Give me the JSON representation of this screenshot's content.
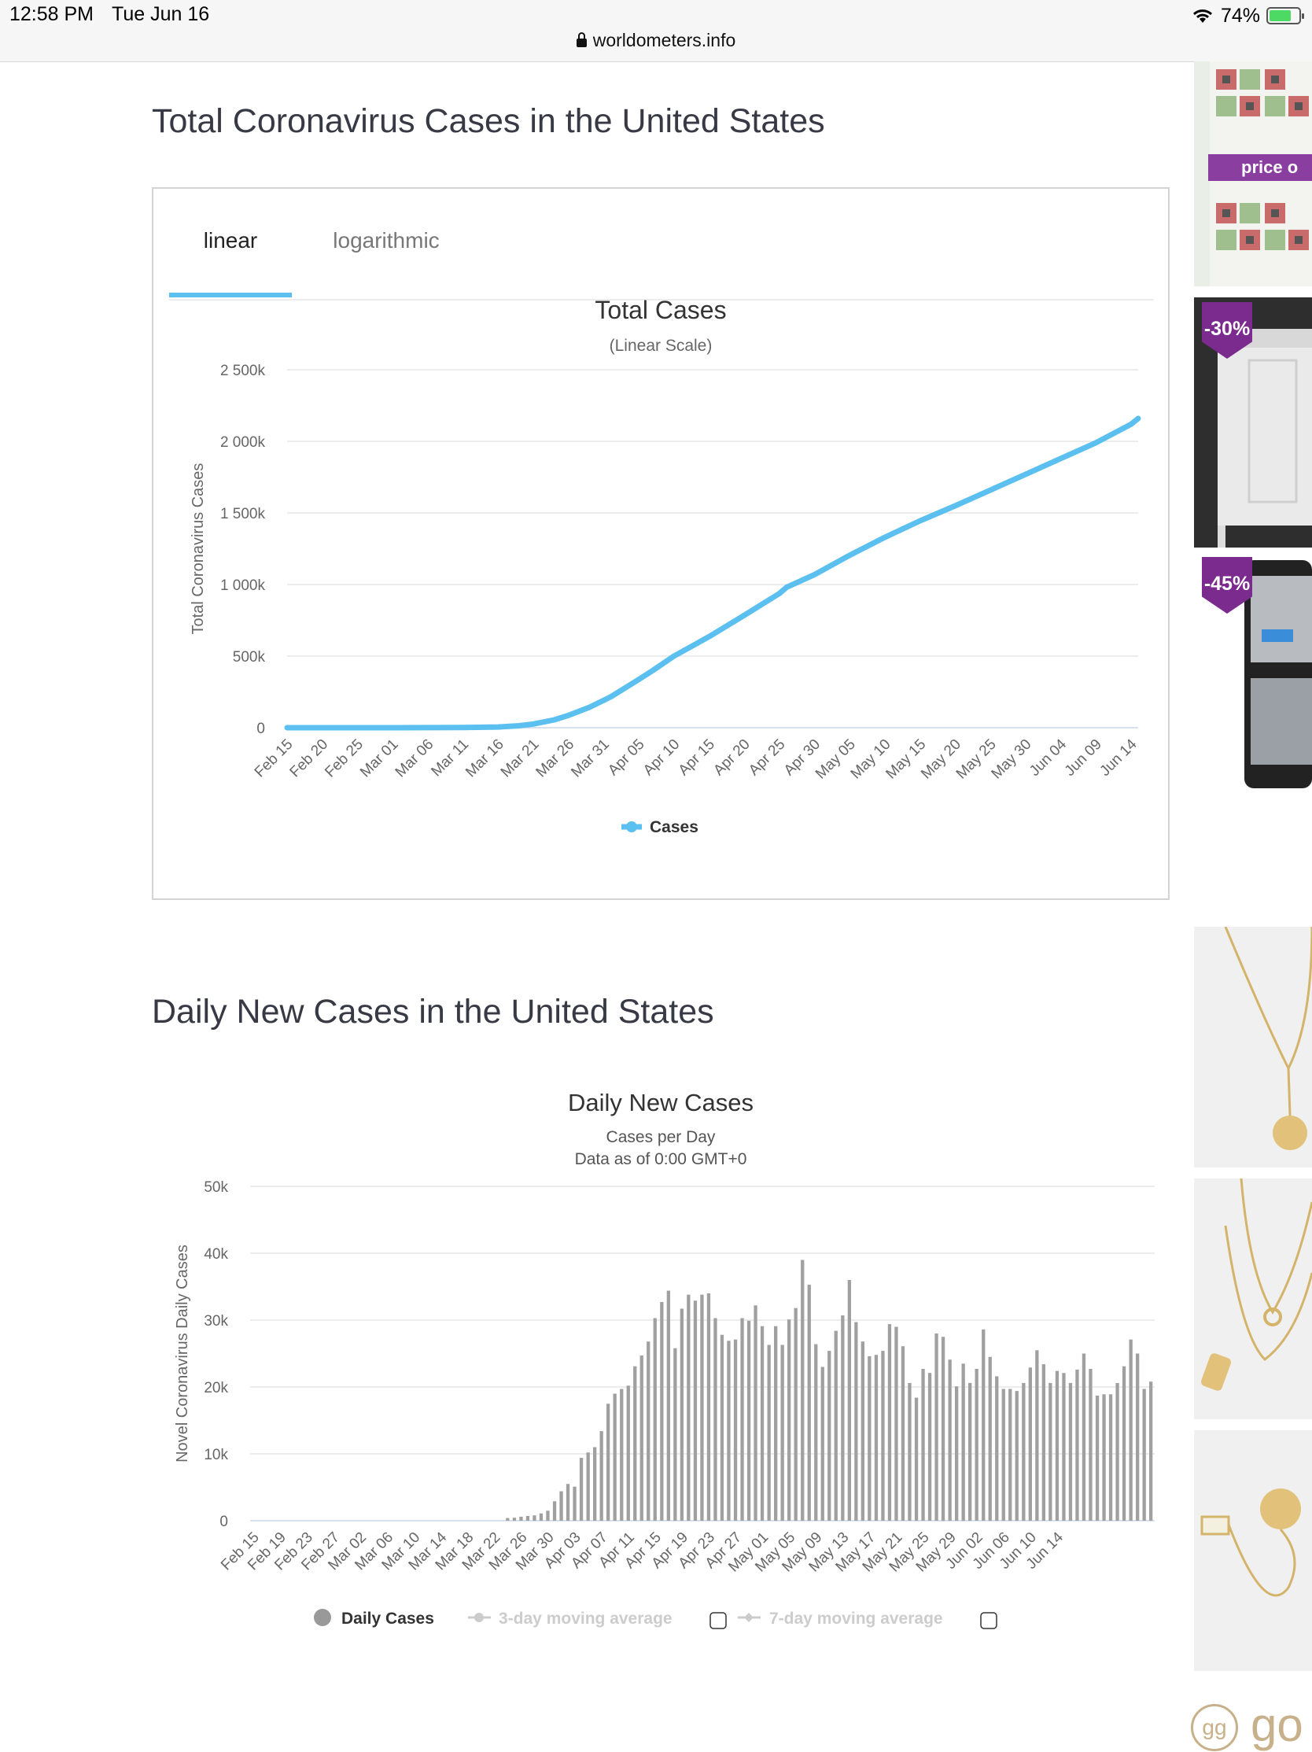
{
  "statusbar": {
    "time": "12:58 PM",
    "date": "Tue Jun 16",
    "battery": "74%",
    "battery_level": 0.74,
    "url": "worldometers.info"
  },
  "section1": {
    "title": "Total Coronavirus Cases in the United States"
  },
  "tabs": {
    "linear": "linear",
    "logarithmic": "logarithmic",
    "active": "linear"
  },
  "section2": {
    "title": "Daily New Cases in the United States"
  },
  "ads": {
    "price_label": "price o",
    "discount1": "-30%",
    "discount2": "-45%",
    "brand": "go"
  },
  "colors": {
    "cases_line": "#5bc0f0",
    "bars": "#a0a0a0",
    "title": "#373a45",
    "accent_tab": "#5bc0f0",
    "discount_tag": "#7b2a8e"
  },
  "chart_data": [
    {
      "type": "line",
      "title": "Total Cases",
      "subtitle": "(Linear Scale)",
      "ylabel": "Total Coronavirus Cases",
      "xlabel": "",
      "ylim": [
        0,
        2500000
      ],
      "yticks": [
        0,
        500000,
        1000000,
        1500000,
        2000000,
        2500000
      ],
      "ytick_labels": [
        "0",
        "500k",
        "1 000k",
        "1 500k",
        "2 000k",
        "2 500k"
      ],
      "xtick_labels": [
        "Feb 15",
        "Feb 20",
        "Feb 25",
        "Mar 01",
        "Mar 06",
        "Mar 11",
        "Mar 16",
        "Mar 21",
        "Mar 26",
        "Mar 31",
        "Apr 05",
        "Apr 10",
        "Apr 15",
        "Apr 20",
        "Apr 25",
        "Apr 30",
        "May 05",
        "May 10",
        "May 15",
        "May 20",
        "May 25",
        "May 30",
        "Jun 04",
        "Jun 09",
        "Jun 14"
      ],
      "x_start": "Feb 15",
      "x_end": "Jun 15",
      "grid": true,
      "legend": "bottom-center",
      "series": [
        {
          "name": "Cases",
          "points": [
            [
              "Feb 15",
              15
            ],
            [
              "Feb 25",
              15
            ],
            [
              "Mar 01",
              75
            ],
            [
              "Mar 06",
              310
            ],
            [
              "Mar 11",
              1300
            ],
            [
              "Mar 16",
              4700
            ],
            [
              "Mar 19",
              14000
            ],
            [
              "Mar 21",
              26000
            ],
            [
              "Mar 24",
              55000
            ],
            [
              "Mar 26",
              86000
            ],
            [
              "Mar 29",
              143000
            ],
            [
              "Apr 01",
              215000
            ],
            [
              "Apr 05",
              337000
            ],
            [
              "Apr 07",
              400000
            ],
            [
              "Apr 10",
              500000
            ],
            [
              "Apr 15",
              636000
            ],
            [
              "Apr 20",
              785000
            ],
            [
              "Apr 25",
              938000
            ],
            [
              "Apr 26",
              980000
            ],
            [
              "Apr 30",
              1070000
            ],
            [
              "May 05",
              1205000
            ],
            [
              "May 10",
              1330000
            ],
            [
              "May 15",
              1445000
            ],
            [
              "May 20",
              1550000
            ],
            [
              "May 25",
              1660000
            ],
            [
              "May 30",
              1770000
            ],
            [
              "Jun 04",
              1880000
            ],
            [
              "Jun 09",
              1990000
            ],
            [
              "Jun 14",
              2120000
            ],
            [
              "Jun 15",
              2160000
            ]
          ]
        }
      ]
    },
    {
      "type": "bar",
      "title": "Daily New Cases",
      "subtitle": "Cases per Day",
      "subtitle2": "Data as of 0:00 GMT+0",
      "ylabel": "Novel Coronavirus Daily Cases",
      "xlabel": "",
      "ylim": [
        0,
        50000
      ],
      "yticks": [
        0,
        10000,
        20000,
        30000,
        40000,
        50000
      ],
      "ytick_labels": [
        "0",
        "10k",
        "20k",
        "30k",
        "40k",
        "50k"
      ],
      "xtick_labels": [
        "Feb 15",
        "Feb 19",
        "Feb 23",
        "Feb 27",
        "Mar 02",
        "Mar 06",
        "Mar 10",
        "Mar 14",
        "Mar 18",
        "Mar 22",
        "Mar 26",
        "Mar 30",
        "Apr 03",
        "Apr 07",
        "Apr 11",
        "Apr 15",
        "Apr 19",
        "Apr 23",
        "Apr 27",
        "May 01",
        "May 05",
        "May 09",
        "May 13",
        "May 17",
        "May 21",
        "May 25",
        "May 29",
        "Jun 02",
        "Jun 06",
        "Jun 10",
        "Jun 14"
      ],
      "x_start": "Feb 15",
      "grid": true,
      "legend": "bottom-center",
      "legend_items": [
        {
          "name": "Daily Cases",
          "active": true
        },
        {
          "name": "3-day moving average",
          "active": false
        },
        {
          "name": "7-day moving average",
          "active": false
        }
      ],
      "series": [
        {
          "name": "Daily Cases",
          "values": [
            0,
            0,
            0,
            0,
            0,
            0,
            0,
            0,
            0,
            0,
            0,
            0,
            0,
            0,
            0,
            0,
            0,
            0,
            0,
            0,
            0,
            0,
            0,
            0,
            0,
            0,
            0,
            0,
            0,
            0,
            0,
            0,
            0,
            0,
            0,
            0,
            0,
            0,
            400,
            450,
            600,
            700,
            800,
            1100,
            1500,
            2900,
            4400,
            5500,
            5100,
            9400,
            10200,
            11000,
            13400,
            17500,
            19000,
            19700,
            20200,
            23100,
            24700,
            26800,
            30300,
            32700,
            34400,
            25800,
            31700,
            33800,
            32900,
            33800,
            34000,
            30300,
            27800,
            26900,
            27100,
            30300,
            29900,
            32200,
            29100,
            26300,
            29100,
            26300,
            30100,
            31800,
            39000,
            35300,
            26400,
            23000,
            25400,
            28400,
            30700,
            36000,
            29700,
            26800,
            24600,
            24800,
            25400,
            29400,
            29000,
            26100,
            20600,
            18400,
            22700,
            22100,
            28000,
            27500,
            24100,
            20100,
            23500,
            20600,
            22700,
            28600,
            24500,
            21600,
            19700,
            19700,
            19400,
            20600,
            22900,
            25500,
            23400,
            20600,
            22400,
            22100,
            20600,
            22600,
            25000,
            22700,
            18700,
            18900,
            18900,
            20600,
            23100,
            27100,
            25000,
            19700,
            20800
          ]
        }
      ]
    }
  ]
}
